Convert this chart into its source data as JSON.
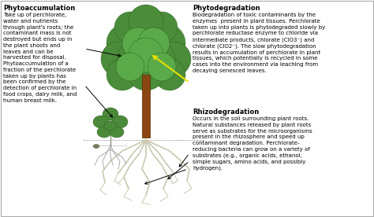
{
  "bg_color": "#ffffff",
  "phytoaccumulation_title": "Phytoaccumulation",
  "phytoaccumulation_text": "Take up of perchlorate,\nwater and nutrients\nthrough plant's roots; the\ncontaminant mass is not\ndestroyed but ends up in\nthe plant shoots and\nleaves and can be\nharvested for disposal.\nPhytoaccumulation of a\nfraction of the perchlorate\ntaken up by plants has\nbeen confirmed by the\ndetection of perchlorate in\nfood crops, dairy milk, and\nhuman breast milk.",
  "phytodegradation_title": "Phytodegradation",
  "phytodegradation_text": "Biodegradation of toxic contaminants by the\nenzymes  present in plant tissues. Perchlorate\ntaken up into plants is phytodegraded slowly by\nperchlorate reductase enzyme to chloride via\nintermediate products, chlorate (ClO3⁻) and\nchlorate (ClO2⁻). The slow phytodegradation\nresults in accumulation of perchlorate in plant\ntissues, which potentially is recycled in some\ncases into the environment via leaching from\ndecaying senesced leaves.",
  "rhizodegradation_title": "Rhizodegradation",
  "rhizodegradation_text": "Occurs in the soil surrounding plant roots.\nNatural substances released by plant roots\nserve as substrates for the microorganisms\npresent in the rhizosphere and speed up\ncontaminant degradation. Perchlorate-\nreducing bacteria can grow on a variety of\nsubstrates (e.g., organic acids, ethanol,\nsimple sugars, amino acids, and possibly\nhydrogen).",
  "text_fontsize": 5.0,
  "title_fontsize": 6.0,
  "canopy_color": "#4a8c3a",
  "canopy_edge": "#2a5a1a",
  "canopy_color2": "#5aaa4a",
  "trunk_color": "#8B4513",
  "root_color": "#c8c8b0",
  "small_plant_color": "#3a7a2a"
}
